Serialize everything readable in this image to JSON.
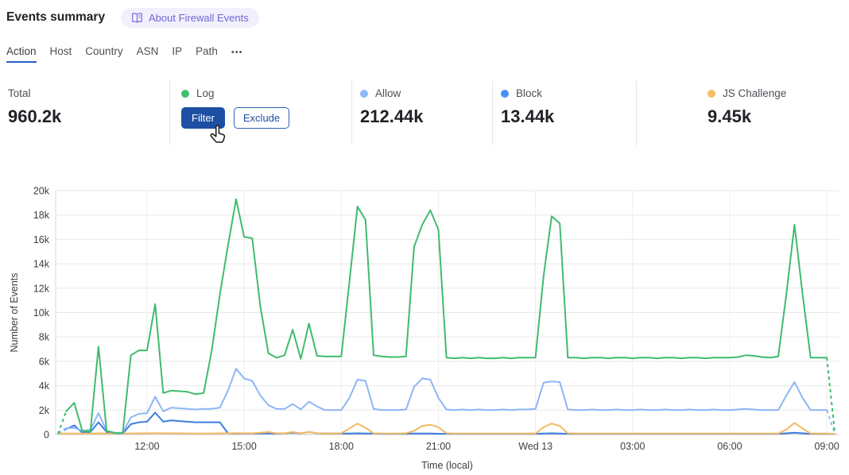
{
  "header": {
    "title": "Events summary",
    "about_badge": "About Firewall Events"
  },
  "tabs": {
    "items": [
      {
        "label": "Action",
        "active": true
      },
      {
        "label": "Host",
        "active": false
      },
      {
        "label": "Country",
        "active": false
      },
      {
        "label": "ASN",
        "active": false
      },
      {
        "label": "IP",
        "active": false
      },
      {
        "label": "Path",
        "active": false
      }
    ],
    "more_label": "•••"
  },
  "summary": {
    "total": {
      "label": "Total",
      "value": "960.2k"
    },
    "cards": [
      {
        "label": "Log",
        "dot_color": "#41bf70",
        "state": "hovered",
        "buttons": {
          "filter": "Filter",
          "exclude": "Exclude"
        }
      },
      {
        "label": "Allow",
        "dot_color": "#8fb9f8",
        "value": "212.44k"
      },
      {
        "label": "Block",
        "dot_color": "#4691f7",
        "value": "13.44k"
      },
      {
        "label": "JS Challenge",
        "dot_color": "#f6bd66",
        "value": "9.45k"
      }
    ]
  },
  "colors": {
    "tab_underline": "#2262c6",
    "button_primary_bg": "#1d4fa3",
    "badge_bg": "#f2f0fc",
    "badge_text": "#6e66d6"
  },
  "chart_data": {
    "type": "line",
    "title": "",
    "xlabel": "Time (local)",
    "ylabel": "Number of Events",
    "ylim": [
      0,
      20000
    ],
    "grid": true,
    "values_unit": "thousands of events",
    "y_tick_labels": [
      "0",
      "2k",
      "4k",
      "6k",
      "8k",
      "10k",
      "12k",
      "14k",
      "16k",
      "18k",
      "20k"
    ],
    "x_ticks": [
      {
        "index": 11,
        "label": "12:00"
      },
      {
        "index": 23,
        "label": "15:00"
      },
      {
        "index": 35,
        "label": "18:00"
      },
      {
        "index": 47,
        "label": "21:00"
      },
      {
        "index": 59,
        "label": "Wed 13"
      },
      {
        "index": 71,
        "label": "03:00"
      },
      {
        "index": 83,
        "label": "06:00"
      },
      {
        "index": 95,
        "label": "09:00"
      }
    ],
    "x_axis_hint": {
      "interval_minutes": 15,
      "num_points": 97,
      "first_and_last_points_partial": true
    },
    "series": [
      {
        "name": "Log",
        "color": "#40bb6e",
        "dash_start": true,
        "dash_end": true,
        "values": [
          0.05,
          1.9,
          2.6,
          0.3,
          0.25,
          7.2,
          0.3,
          0.12,
          0.12,
          6.5,
          6.9,
          6.9,
          10.7,
          3.4,
          3.6,
          3.55,
          3.5,
          3.3,
          3.4,
          6.9,
          11.5,
          15.5,
          19.3,
          16.2,
          16.1,
          10.5,
          6.65,
          6.3,
          6.5,
          8.6,
          6.2,
          9.1,
          6.45,
          6.4,
          6.4,
          6.4,
          12.5,
          18.7,
          17.6,
          6.5,
          6.4,
          6.35,
          6.35,
          6.4,
          15.4,
          17.2,
          18.4,
          16.8,
          6.3,
          6.25,
          6.3,
          6.25,
          6.3,
          6.25,
          6.25,
          6.3,
          6.25,
          6.3,
          6.3,
          6.3,
          13.0,
          17.9,
          17.3,
          6.3,
          6.3,
          6.25,
          6.3,
          6.3,
          6.25,
          6.3,
          6.3,
          6.25,
          6.3,
          6.3,
          6.25,
          6.3,
          6.3,
          6.25,
          6.3,
          6.3,
          6.25,
          6.3,
          6.3,
          6.3,
          6.35,
          6.5,
          6.45,
          6.35,
          6.3,
          6.4,
          11.5,
          17.2,
          11.5,
          6.3,
          6.3,
          6.3,
          0.05
        ]
      },
      {
        "name": "Allow",
        "color": "#8db6f6",
        "dash_start": true,
        "dash_end": true,
        "values": [
          0.15,
          0.5,
          0.55,
          0.3,
          0.4,
          1.75,
          0.3,
          0.15,
          0.15,
          1.4,
          1.7,
          1.75,
          3.1,
          1.9,
          2.2,
          2.15,
          2.1,
          2.05,
          2.1,
          2.1,
          2.2,
          3.6,
          5.4,
          4.6,
          4.4,
          3.2,
          2.4,
          2.1,
          2.1,
          2.5,
          2.05,
          2.7,
          2.3,
          2.0,
          2.0,
          2.0,
          3.0,
          4.5,
          4.4,
          2.1,
          2.0,
          2.0,
          2.0,
          2.05,
          3.9,
          4.6,
          4.5,
          3.0,
          2.05,
          2.0,
          2.05,
          2.0,
          2.05,
          2.0,
          2.0,
          2.05,
          2.0,
          2.05,
          2.05,
          2.1,
          4.25,
          4.35,
          4.3,
          2.05,
          2.0,
          2.0,
          2.05,
          2.0,
          2.0,
          2.05,
          2.0,
          2.0,
          2.05,
          2.0,
          2.0,
          2.05,
          2.0,
          2.0,
          2.05,
          2.0,
          2.0,
          2.05,
          2.0,
          2.0,
          2.05,
          2.1,
          2.05,
          2.0,
          2.0,
          2.0,
          3.2,
          4.3,
          3.0,
          2.0,
          2.0,
          2.0,
          0.05
        ]
      },
      {
        "name": "Block",
        "color": "#3d7ce0",
        "dash_start": true,
        "dash_end": false,
        "values": [
          0.1,
          0.45,
          0.75,
          0.15,
          0.2,
          1.0,
          0.2,
          0.08,
          0.08,
          0.85,
          1.0,
          1.05,
          1.8,
          1.05,
          1.15,
          1.1,
          1.05,
          1.0,
          1.0,
          1.0,
          1.0,
          0.1,
          0.08,
          0.08,
          0.08,
          0.08,
          0.08,
          0.08,
          0.1,
          0.15,
          0.1,
          0.2,
          0.1,
          0.08,
          0.08,
          0.08,
          0.08,
          0.1,
          0.08,
          0.08,
          0.06,
          0.06,
          0.06,
          0.06,
          0.08,
          0.08,
          0.08,
          0.06,
          0.06,
          0.06,
          0.06,
          0.06,
          0.06,
          0.06,
          0.06,
          0.06,
          0.06,
          0.06,
          0.06,
          0.06,
          0.08,
          0.1,
          0.08,
          0.06,
          0.06,
          0.06,
          0.06,
          0.06,
          0.06,
          0.06,
          0.06,
          0.06,
          0.06,
          0.06,
          0.06,
          0.06,
          0.06,
          0.06,
          0.06,
          0.06,
          0.06,
          0.06,
          0.06,
          0.06,
          0.06,
          0.06,
          0.06,
          0.06,
          0.06,
          0.06,
          0.1,
          0.15,
          0.1,
          0.06,
          0.06,
          0.06,
          0.03
        ]
      },
      {
        "name": "JS Challenge",
        "color": "#f3ba62",
        "dash_start": false,
        "dash_end": false,
        "values": [
          0.08,
          0.08,
          0.08,
          0.08,
          0.08,
          0.1,
          0.08,
          0.08,
          0.08,
          0.08,
          0.1,
          0.1,
          0.12,
          0.1,
          0.1,
          0.1,
          0.08,
          0.08,
          0.08,
          0.08,
          0.1,
          0.1,
          0.12,
          0.1,
          0.1,
          0.15,
          0.2,
          0.1,
          0.1,
          0.2,
          0.1,
          0.2,
          0.1,
          0.08,
          0.08,
          0.1,
          0.5,
          0.9,
          0.55,
          0.1,
          0.08,
          0.08,
          0.08,
          0.1,
          0.3,
          0.7,
          0.8,
          0.6,
          0.1,
          0.08,
          0.08,
          0.08,
          0.08,
          0.08,
          0.08,
          0.08,
          0.08,
          0.08,
          0.08,
          0.08,
          0.6,
          0.9,
          0.7,
          0.1,
          0.08,
          0.08,
          0.08,
          0.08,
          0.08,
          0.08,
          0.08,
          0.08,
          0.08,
          0.08,
          0.08,
          0.08,
          0.08,
          0.08,
          0.08,
          0.08,
          0.08,
          0.08,
          0.08,
          0.08,
          0.08,
          0.08,
          0.08,
          0.08,
          0.08,
          0.08,
          0.4,
          0.95,
          0.5,
          0.08,
          0.08,
          0.08,
          0.03
        ]
      }
    ],
    "legend_position": "summary cards above chart"
  }
}
